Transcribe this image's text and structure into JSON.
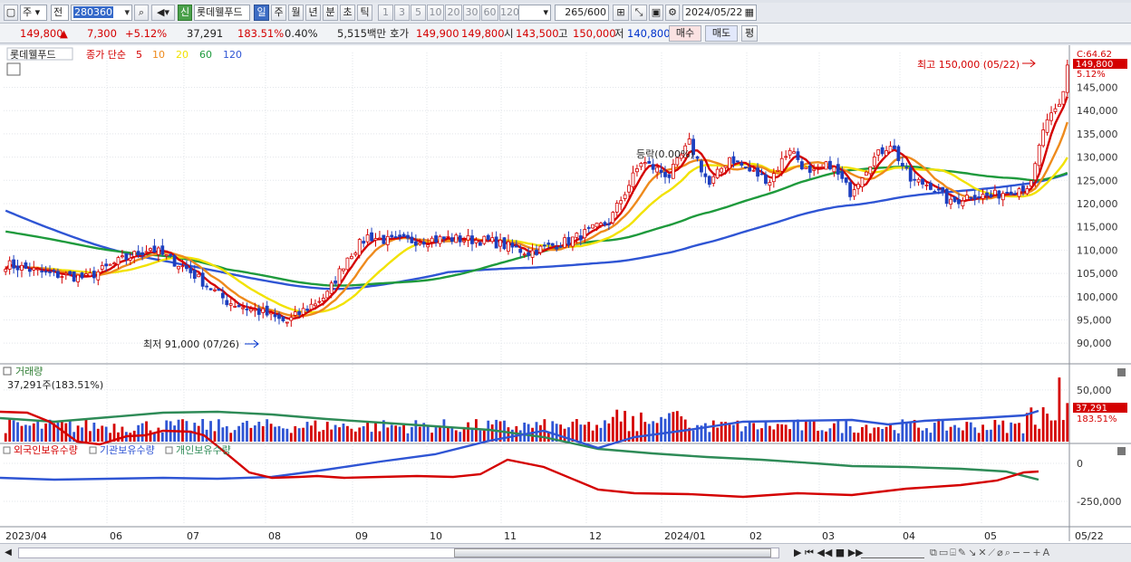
{
  "toolbar": {
    "period_type": "주",
    "all_label": "전",
    "stock_code": "280360",
    "new_badge": "신",
    "stock_name": "롯데웰푸드",
    "interval_buttons": [
      "일",
      "주",
      "월",
      "년",
      "분",
      "초",
      "틱"
    ],
    "selected_interval": "일",
    "minute_buttons": [
      "1",
      "3",
      "5",
      "10",
      "20",
      "30",
      "60",
      "120"
    ],
    "count_current": "265",
    "count_total": "/600",
    "date": "2024/05/22"
  },
  "quote": {
    "price": "149,800",
    "change": "7,300",
    "change_pct": "+5.12%",
    "volume": "37,291",
    "volume_ratio": "183.51%",
    "turnover": "0.40%",
    "amount": "5,515백만",
    "ask_label": "호가",
    "ask": "149,900",
    "bid": "149,800",
    "open_label": "시",
    "open": "143,500",
    "high_label": "고",
    "high": "150,000",
    "low_label": "저",
    "low": "140,800",
    "buy_label": "매수",
    "sell_label": "매도",
    "eval_label": "평"
  },
  "price_panel": {
    "name_tag": "롯데웰푸드",
    "ma_title": "종가 단순",
    "ma_periods": [
      "5",
      "10",
      "20",
      "60",
      "120"
    ],
    "ma_colors": [
      "#d40000",
      "#ee8a1c",
      "#f2e200",
      "#1e9a3c",
      "#2f55d4"
    ],
    "high_annot": "최고 150,000 (05/22)",
    "low_annot": "최저 91,000 (07/26)",
    "mid_annot": "등락(0.00%)",
    "current_tag": "149,800",
    "c_label": "C:64.62",
    "pct_label": "5.12%"
  },
  "volume_panel": {
    "title": "거래량",
    "value_text": "37,291주(183.51%)",
    "current_tag": "37,291",
    "pct_tag": "183.51%"
  },
  "holding_panel": {
    "legend": [
      "외국인보유수량",
      "기관보유수량",
      "개인보유수량"
    ],
    "colors": [
      "#d40000",
      "#2f55d4",
      "#2e8b57"
    ]
  },
  "x_axis_labels": [
    "2023/04",
    "06",
    "07",
    "08",
    "09",
    "10",
    "11",
    "12",
    "2024/01",
    "02",
    "03",
    "04",
    "05",
    "05/22"
  ],
  "chart_data": {
    "type": "line",
    "price_ticks": [
      "145,000",
      "140,000",
      "135,000",
      "130,000",
      "125,000",
      "120,000",
      "115,000",
      "110,000",
      "105,000",
      "100,000",
      "95,000",
      "90,000"
    ],
    "price_ylim": [
      87500,
      152500
    ],
    "volume_ticks": [
      "50,000"
    ],
    "holding_ticks": [
      "0",
      "-250,000"
    ],
    "close_keypoints": {
      "t": [
        0,
        10,
        20,
        28,
        36,
        45,
        55,
        60,
        64,
        68,
        70,
        74,
        80,
        85,
        90,
        95,
        100,
        110,
        120,
        130,
        140,
        150,
        158,
        165,
        170,
        175,
        180,
        185,
        190,
        195,
        200,
        205,
        210,
        215,
        220,
        225,
        230,
        235,
        240,
        245,
        250,
        255,
        258,
        262,
        265
      ],
      "v": [
        107000,
        105000,
        104000,
        107500,
        110500,
        106000,
        99000,
        97500,
        96500,
        95000,
        94500,
        97000,
        100500,
        108500,
        113000,
        112000,
        112000,
        112500,
        112000,
        109500,
        112000,
        116000,
        129000,
        126000,
        133000,
        124000,
        130000,
        127000,
        125000,
        132000,
        126000,
        128500,
        122500,
        129000,
        133000,
        125000,
        124000,
        120000,
        122000,
        121500,
        123000,
        124000,
        136000,
        141000,
        149800
      ]
    }
  }
}
